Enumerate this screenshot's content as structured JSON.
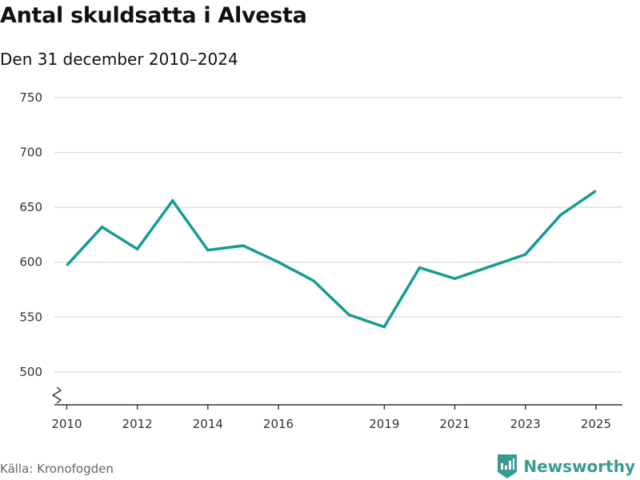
{
  "header": {
    "title": "Antal skuldsatta i Alvesta",
    "subtitle": "Den 31 december 2010–2024"
  },
  "footer": {
    "source": "Källa: Kronofogden",
    "brand": "Newsworthy",
    "brand_color": "#3a9a91"
  },
  "chart_data": {
    "type": "line",
    "title": "Antal skuldsatta i Alvesta",
    "subtitle": "Den 31 december 2010–2024",
    "xlabel": "",
    "ylabel": "",
    "xlim": [
      2009.65,
      2025.75
    ],
    "ylim": [
      470,
      750
    ],
    "y_ticks": [
      500,
      550,
      600,
      650,
      700,
      750
    ],
    "x_ticks": [
      2010,
      2012,
      2014,
      2016,
      2019,
      2021,
      2023,
      2025
    ],
    "axis_break": true,
    "grid": "horizontal",
    "line_color": "#169c92",
    "series": [
      {
        "x": [
          2010,
          2011,
          2012,
          2013,
          2014,
          2015,
          2016,
          2017,
          2018,
          2019,
          2020,
          2021,
          2022,
          2023,
          2024,
          2025
        ],
        "values": [
          597,
          632,
          612,
          656,
          611,
          615,
          600,
          583,
          552,
          541,
          595,
          585,
          596,
          607,
          643,
          665
        ]
      }
    ]
  }
}
